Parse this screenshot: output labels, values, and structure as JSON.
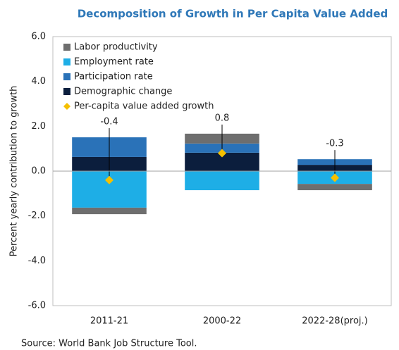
{
  "chart_data": {
    "type": "bar",
    "title": "Decomposition of Growth in Per Capita Value Added",
    "y_label": "Percent yearly contribution to growth",
    "source": "Source: World Bank Job Structure Tool.",
    "categories": [
      "2011-21",
      "2000-22",
      "2022-28(proj.)"
    ],
    "series": [
      {
        "name": "Demographic change",
        "color": "#0b1e3d",
        "values": [
          0.63,
          0.82,
          0.28
        ]
      },
      {
        "name": "Participation rate",
        "color": "#2a72b8",
        "values": [
          0.88,
          0.41,
          0.25
        ]
      },
      {
        "name": "Employment rate",
        "color": "#1eaee6",
        "values": [
          -1.63,
          -0.85,
          -0.57
        ]
      },
      {
        "name": "Labor productivity",
        "color": "#6e6e6e",
        "values": [
          -0.29,
          0.44,
          -0.28
        ]
      }
    ],
    "line_series": {
      "name": "Per-capita value added growth",
      "color": "#f5c000",
      "values": [
        -0.4,
        0.8,
        -0.3
      ]
    },
    "ylim": [
      -6,
      6
    ],
    "yticks": [
      {
        "value": -6,
        "label": "-6.0"
      },
      {
        "value": -4,
        "label": "-4.0"
      },
      {
        "value": -2,
        "label": "-2.0"
      },
      {
        "value": 0,
        "label": "0.0"
      },
      {
        "value": 2,
        "label": "2.0"
      },
      {
        "value": 4,
        "label": "4.0"
      },
      {
        "value": 6,
        "label": "6.0"
      }
    ],
    "legend": "upper left"
  }
}
